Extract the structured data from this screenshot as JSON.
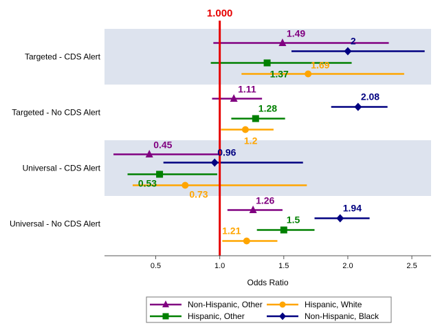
{
  "chart_data": {
    "type": "forest",
    "xlabel": "Odds Ratio",
    "xlim": [
      0.1,
      2.65
    ],
    "xticks": [
      0.5,
      1.0,
      1.5,
      2.0,
      2.5
    ],
    "xtick_labels": [
      "0.5",
      "1.0",
      "1.5",
      "2.0",
      "2.5"
    ],
    "reference_line": {
      "value": 1.0,
      "label": "1.000",
      "color": "#e60000"
    },
    "categories": [
      "Targeted - CDS Alert",
      "Targeted - No CDS Alert",
      "Universal - CDS Alert",
      "Universal - No CDS Alert"
    ],
    "shaded_categories": [
      true,
      false,
      true,
      false
    ],
    "series": [
      {
        "name": "Non-Hispanic, Other",
        "color": "#800080",
        "marker": "triangle",
        "points": [
          {
            "category": "Targeted - CDS Alert",
            "estimate": 1.49,
            "lower": 0.95,
            "upper": 2.32,
            "label": "1.49"
          },
          {
            "category": "Targeted - No CDS Alert",
            "estimate": 1.11,
            "lower": 0.94,
            "upper": 1.33,
            "label": "1.11"
          },
          {
            "category": "Universal - CDS Alert",
            "estimate": 0.45,
            "lower": 0.17,
            "upper": 1.0,
            "label": "0.45"
          },
          {
            "category": "Universal - No CDS Alert",
            "estimate": 1.26,
            "lower": 1.06,
            "upper": 1.49,
            "label": "1.26"
          }
        ]
      },
      {
        "name": "Non-Hispanic, Black",
        "color": "#000080",
        "marker": "diamond",
        "points": [
          {
            "category": "Targeted - CDS Alert",
            "estimate": 2.0,
            "lower": 1.56,
            "upper": 2.6,
            "label": "2"
          },
          {
            "category": "Targeted - No CDS Alert",
            "estimate": 2.08,
            "lower": 1.87,
            "upper": 2.31,
            "label": "2.08"
          },
          {
            "category": "Universal - CDS Alert",
            "estimate": 0.96,
            "lower": 0.56,
            "upper": 1.65,
            "label": "0.96"
          },
          {
            "category": "Universal - No CDS Alert",
            "estimate": 1.94,
            "lower": 1.74,
            "upper": 2.17,
            "label": "1.94"
          }
        ]
      },
      {
        "name": "Hispanic, Other",
        "color": "#008000",
        "marker": "square",
        "points": [
          {
            "category": "Targeted - CDS Alert",
            "estimate": 1.37,
            "lower": 0.93,
            "upper": 2.03,
            "label": "1.37"
          },
          {
            "category": "Targeted - No CDS Alert",
            "estimate": 1.28,
            "lower": 1.09,
            "upper": 1.51,
            "label": "1.28"
          },
          {
            "category": "Universal - CDS Alert",
            "estimate": 0.53,
            "lower": 0.28,
            "upper": 0.98,
            "label": "0.53"
          },
          {
            "category": "Universal - No CDS Alert",
            "estimate": 1.5,
            "lower": 1.29,
            "upper": 1.74,
            "label": "1.5"
          }
        ]
      },
      {
        "name": "Hispanic, White",
        "color": "#ffa500",
        "marker": "circle",
        "points": [
          {
            "category": "Targeted - CDS Alert",
            "estimate": 1.69,
            "lower": 1.17,
            "upper": 2.44,
            "label": "1.69"
          },
          {
            "category": "Targeted - No CDS Alert",
            "estimate": 1.2,
            "lower": 1.01,
            "upper": 1.42,
            "label": "1.2"
          },
          {
            "category": "Universal - CDS Alert",
            "estimate": 0.73,
            "lower": 0.32,
            "upper": 1.68,
            "label": "0.73"
          },
          {
            "category": "Universal - No CDS Alert",
            "estimate": 1.21,
            "lower": 1.02,
            "upper": 1.45,
            "label": "1.21"
          }
        ]
      }
    ],
    "legend": {
      "position": "bottom",
      "items": [
        {
          "name": "Non-Hispanic, Other",
          "color": "#800080",
          "marker": "triangle"
        },
        {
          "name": "Hispanic, White",
          "color": "#ffa500",
          "marker": "circle"
        },
        {
          "name": "Hispanic, Other",
          "color": "#008000",
          "marker": "square"
        },
        {
          "name": "Non-Hispanic, Black",
          "color": "#000080",
          "marker": "diamond"
        }
      ]
    },
    "band_color": "#dde3ee",
    "grid": false
  }
}
